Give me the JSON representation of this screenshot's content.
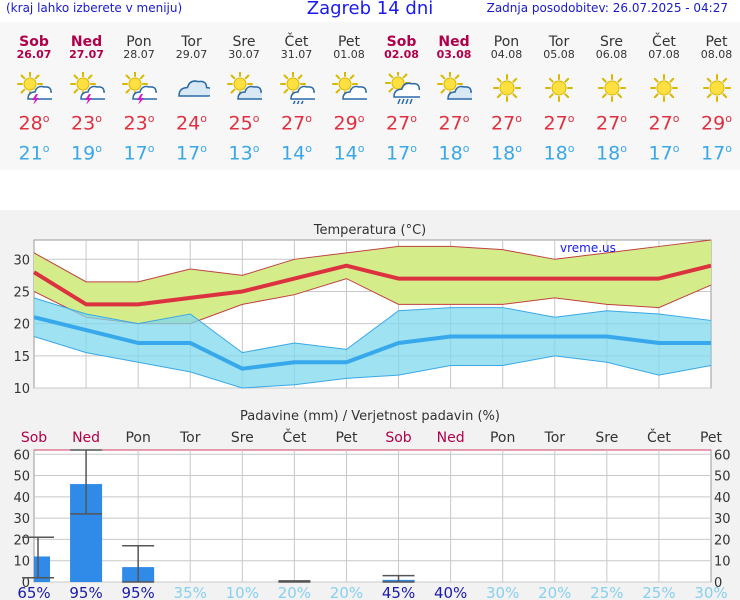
{
  "header": {
    "menu_hint": "(kraj lahko izberete v meniju)",
    "title": "Zagreb 14 dni",
    "updated": "Zadnja posodobitev: 26.07.2025 - 04:27"
  },
  "days": [
    {
      "name": "Sob",
      "date": "26.07",
      "icon": "storm-icon",
      "max": "28",
      "min": "21",
      "weekend": true
    },
    {
      "name": "Ned",
      "date": "27.07",
      "icon": "storm-icon",
      "max": "23",
      "min": "19",
      "weekend": true
    },
    {
      "name": "Pon",
      "date": "28.07",
      "icon": "storm-icon",
      "max": "23",
      "min": "17",
      "weekend": false
    },
    {
      "name": "Tor",
      "date": "29.07",
      "icon": "cloud-icon",
      "max": "24",
      "min": "17",
      "weekend": false
    },
    {
      "name": "Sre",
      "date": "30.07",
      "icon": "partly-cloudy-icon",
      "max": "25",
      "min": "13",
      "weekend": false
    },
    {
      "name": "Čet",
      "date": "31.07",
      "icon": "sun-rain-icon",
      "max": "27",
      "min": "14",
      "weekend": false
    },
    {
      "name": "Pet",
      "date": "01.08",
      "icon": "sun-cloud-icon",
      "max": "29",
      "min": "14",
      "weekend": false
    },
    {
      "name": "Sob",
      "date": "02.08",
      "icon": "rain-cloud-icon",
      "max": "27",
      "min": "17",
      "weekend": true
    },
    {
      "name": "Ned",
      "date": "03.08",
      "icon": "partly-cloudy-icon",
      "max": "27",
      "min": "18",
      "weekend": true
    },
    {
      "name": "Pon",
      "date": "04.08",
      "icon": "sun-icon",
      "max": "27",
      "min": "18",
      "weekend": false
    },
    {
      "name": "Tor",
      "date": "05.08",
      "icon": "sun-icon",
      "max": "27",
      "min": "18",
      "weekend": false
    },
    {
      "name": "Sre",
      "date": "06.08",
      "icon": "sun-icon",
      "max": "27",
      "min": "18",
      "weekend": false
    },
    {
      "name": "Čet",
      "date": "07.08",
      "icon": "sun-icon",
      "max": "27",
      "min": "17",
      "weekend": false
    },
    {
      "name": "Pet",
      "date": "08.08",
      "icon": "sun-icon",
      "max": "29",
      "min": "17",
      "weekend": false
    }
  ],
  "degree_symbol": "o",
  "colors": {
    "max": "#e03040",
    "min": "#3aa8e8",
    "weekend": "#b0004a",
    "bar": "#2f8ae8",
    "prob_high": "#1a1aaa",
    "prob_low": "#86d0f0"
  },
  "chart_data": [
    {
      "type": "line",
      "title": "Temperatura (°C)",
      "watermark": "vreme.us",
      "ylim": [
        10,
        33
      ],
      "yticks": [
        10,
        15,
        20,
        25,
        30
      ],
      "series": [
        {
          "name": "max",
          "values": [
            28,
            23,
            23,
            24,
            25,
            27,
            29,
            27,
            27,
            27,
            27,
            27,
            27,
            29
          ],
          "band_high": [
            31,
            26.5,
            26.5,
            28.5,
            27.5,
            30,
            31,
            32,
            32,
            31.5,
            30,
            31,
            32,
            33
          ],
          "band_low": [
            25,
            21,
            20,
            20,
            23,
            24.5,
            27,
            23,
            23,
            23,
            24,
            23,
            22.5,
            26
          ]
        },
        {
          "name": "min",
          "values": [
            21,
            19,
            17,
            17,
            13,
            14,
            14,
            17,
            18,
            18,
            18,
            18,
            17,
            17
          ],
          "band_high": [
            24,
            21.5,
            20,
            21.5,
            15.5,
            17,
            16,
            22,
            22.5,
            22.5,
            21,
            22,
            21.5,
            20.5
          ],
          "band_low": [
            18,
            15.5,
            14,
            12.5,
            10,
            10.5,
            11.5,
            12,
            13.5,
            13.5,
            15,
            14,
            12,
            13.5
          ]
        }
      ]
    },
    {
      "type": "bar",
      "title": "Padavine (mm) / Verjetnost padavin (%)",
      "ylim": [
        0,
        62
      ],
      "yticks": [
        0,
        10,
        20,
        30,
        40,
        50,
        60
      ],
      "categories": [
        "Sob",
        "Ned",
        "Pon",
        "Tor",
        "Sre",
        "Čet",
        "Pet",
        "Sob",
        "Ned",
        "Pon",
        "Tor",
        "Sre",
        "Čet",
        "Pet"
      ],
      "weekend": [
        true,
        true,
        false,
        false,
        false,
        false,
        false,
        true,
        true,
        false,
        false,
        false,
        false,
        false
      ],
      "values": [
        12,
        46,
        7,
        0,
        0,
        0,
        0,
        1,
        0,
        0,
        0,
        0,
        0,
        0
      ],
      "range_low": [
        2,
        32,
        0,
        null,
        null,
        0,
        null,
        0,
        null,
        null,
        null,
        null,
        null,
        null
      ],
      "range_high": [
        21,
        62,
        17,
        null,
        null,
        0.5,
        null,
        3,
        null,
        null,
        null,
        null,
        null,
        null
      ],
      "probability": [
        "65%",
        "95%",
        "95%",
        "35%",
        "10%",
        "20%",
        "20%",
        "45%",
        "40%",
        "30%",
        "20%",
        "25%",
        "25%",
        "30%"
      ]
    }
  ]
}
